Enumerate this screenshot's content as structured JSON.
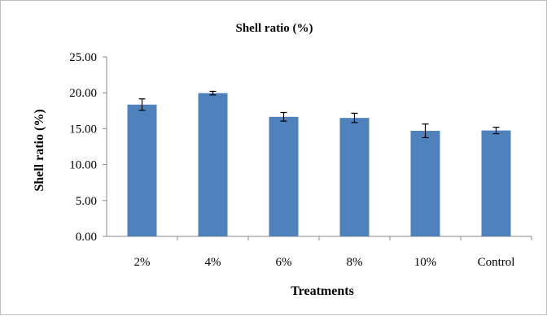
{
  "chart_data": {
    "type": "bar",
    "title": "Shell ratio (%)",
    "xlabel": "Treatments",
    "ylabel": "Shell ratio (%)",
    "categories": [
      "2%",
      "4%",
      "6%",
      "8%",
      "10%",
      "Control"
    ],
    "values": [
      18.35,
      19.95,
      16.65,
      16.5,
      14.7,
      14.75
    ],
    "errors": [
      0.8,
      0.25,
      0.6,
      0.65,
      0.95,
      0.45
    ],
    "ylim": [
      0,
      25
    ],
    "yticks": [
      "0.00",
      "5.00",
      "10.00",
      "15.00",
      "20.00",
      "25.00"
    ],
    "grid": false,
    "legend": "none",
    "colors": {
      "bar": "#4f81bd",
      "error_bar": "#000000",
      "axis": "#888888"
    }
  }
}
